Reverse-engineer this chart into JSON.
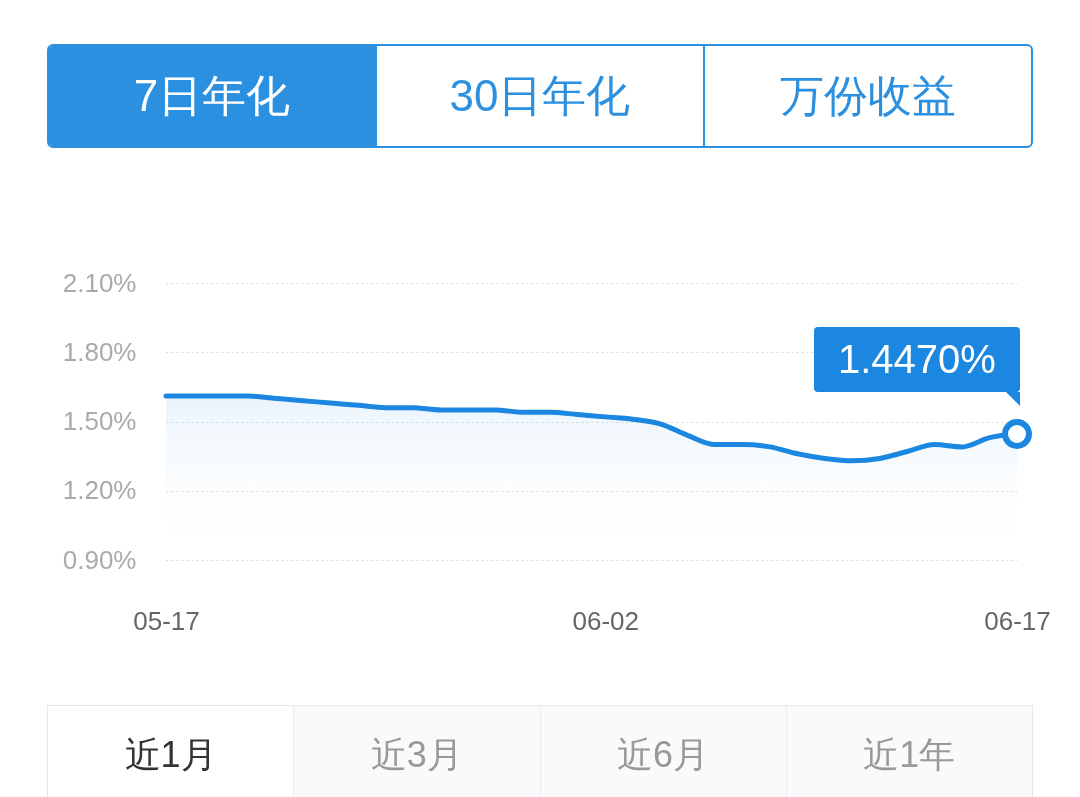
{
  "chart_data": {
    "type": "area",
    "x": [
      "--05-17",
      "--05-18",
      "--05-19",
      "--05-20",
      "--05-21",
      "--05-22",
      "--05-23",
      "--05-24",
      "--05-25",
      "--05-26",
      "--05-27",
      "--05-28",
      "--05-29",
      "--05-30",
      "--05-31",
      "--06-01",
      "--06-02",
      "--06-03",
      "--06-04",
      "--06-05",
      "--06-06",
      "--06-07",
      "--06-08",
      "--06-09",
      "--06-10",
      "--06-11",
      "--06-12",
      "--06-13",
      "--06-14",
      "--06-15",
      "--06-16",
      "--06-17"
    ],
    "series": [
      {
        "color": "#1b87e0",
        "values": [
          1.61,
          1.61,
          1.61,
          1.61,
          1.6,
          1.59,
          1.58,
          1.57,
          1.56,
          1.56,
          1.55,
          1.55,
          1.55,
          1.54,
          1.54,
          1.53,
          1.52,
          1.51,
          1.49,
          1.44,
          1.4,
          1.4,
          1.39,
          1.36,
          1.34,
          1.33,
          1.34,
          1.37,
          1.4,
          1.39,
          1.43,
          1.447
        ]
      }
    ],
    "xlim": [
      "--05-17",
      "--06-17"
    ],
    "xticks": [
      {
        "value": "--05-17",
        "label": "05-17"
      },
      {
        "value": "--06-02",
        "label": "06-02"
      },
      {
        "value": "--06-17",
        "label": "06-17"
      }
    ],
    "ylim": [
      0.9,
      2.1
    ],
    "yticks": [
      {
        "value": 0.9,
        "label": "0.90%"
      },
      {
        "value": 1.2,
        "label": "1.20%"
      },
      {
        "value": 1.5,
        "label": "1.50%"
      },
      {
        "value": 1.8,
        "label": "1.80%"
      },
      {
        "value": 2.1,
        "label": "2.10%"
      }
    ],
    "grid": "y",
    "annotations": [
      {
        "text": "1.4470%",
        "x": "--06-17",
        "y": 1.447
      },
      "7日年化",
      "30日年化",
      "万份收益",
      "近1月",
      "近3月",
      "近6月",
      "近1年"
    ]
  }
}
